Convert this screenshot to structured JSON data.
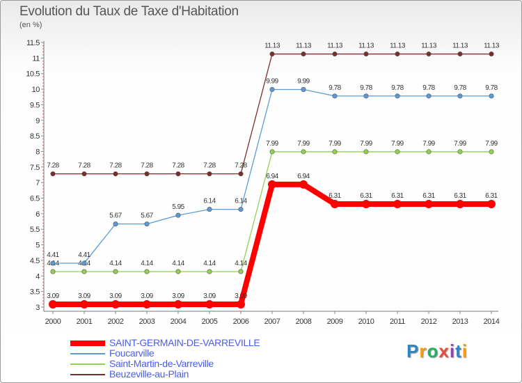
{
  "chart_data": {
    "type": "line",
    "title": "Evolution du Taux de Taxe d'Habitation",
    "ylabel": "(en %)",
    "xlabel": "",
    "x": [
      "2000",
      "2001",
      "2002",
      "2003",
      "2004",
      "2005",
      "2006",
      "2007",
      "2008",
      "2009",
      "2010",
      "2011",
      "2012",
      "2013",
      "2014"
    ],
    "ylim": [
      3,
      11.5
    ],
    "yticks": [
      "3",
      "3.5",
      "4",
      "4.5",
      "5",
      "5.5",
      "6",
      "6.5",
      "7",
      "7.5",
      "8",
      "8.5",
      "9",
      "9.5",
      "10",
      "10.5",
      "11",
      "11.5"
    ],
    "grid": false,
    "legend_position": "bottom-left",
    "series": [
      {
        "name": "SAINT-GERMAIN-DE-VARREVILLE",
        "color": "#ff0000",
        "values": [
          3.09,
          3.09,
          3.09,
          3.09,
          3.09,
          3.09,
          3.09,
          6.94,
          6.94,
          6.31,
          6.31,
          6.31,
          6.31,
          6.31,
          6.31
        ],
        "labels": [
          "3.09",
          "3.09",
          "3.09",
          "3.09",
          "3.09",
          "3.09",
          "3.09",
          "6.94",
          "6.94",
          "6.31",
          "6.31",
          "6.31",
          "6.31",
          "6.31",
          "6.31"
        ]
      },
      {
        "name": "Foucarville",
        "color": "#5b9bd5",
        "values": [
          4.41,
          4.41,
          5.67,
          5.67,
          5.95,
          6.14,
          6.14,
          9.99,
          9.99,
          9.78,
          9.78,
          9.78,
          9.78,
          9.78,
          9.78
        ],
        "labels": [
          "4.41",
          "4.41",
          "5.67",
          "5.67",
          "5.95",
          "6.14",
          "6.14",
          "9.99",
          "9.99",
          "9.78",
          "9.78",
          "9.78",
          "9.78",
          "9.78",
          "9.78"
        ]
      },
      {
        "name": "Saint-Martin-de-Varreville",
        "color": "#92d050",
        "values": [
          4.14,
          4.14,
          4.14,
          4.14,
          4.14,
          4.14,
          4.14,
          7.99,
          7.99,
          7.99,
          7.99,
          7.99,
          7.99,
          7.99,
          7.99
        ],
        "labels": [
          "4.14",
          "4.14",
          "4.14",
          "4.14",
          "4.14",
          "4.14",
          "4.14",
          "7.99",
          "7.99",
          "7.99",
          "7.99",
          "7.99",
          "7.99",
          "7.99",
          "7.99"
        ]
      },
      {
        "name": "Beuzeville-au-Plain",
        "color": "#7b2c2c",
        "values": [
          7.28,
          7.28,
          7.28,
          7.28,
          7.28,
          7.28,
          7.28,
          11.13,
          11.13,
          11.13,
          11.13,
          11.13,
          11.13,
          11.13,
          11.13
        ],
        "labels": [
          "7.28",
          "7.28",
          "7.28",
          "7.28",
          "7.28",
          "7.28",
          "7.28",
          "11.13",
          "11.13",
          "11.13",
          "11.13",
          "11.13",
          "11.13",
          "11.13",
          "11.13"
        ]
      }
    ]
  },
  "legend": {
    "items": [
      {
        "label": "SAINT-GERMAIN-DE-VARREVILLE",
        "color": "#ff0000"
      },
      {
        "label": "Foucarville",
        "color": "#5b9bd5"
      },
      {
        "label": "Saint-Martin-de-Varreville",
        "color": "#92d050"
      },
      {
        "label": "Beuzeville-au-Plain",
        "color": "#7b2c2c"
      }
    ]
  },
  "brand": {
    "letters": [
      "P",
      "r",
      "o",
      "x",
      "i",
      "t",
      "i"
    ],
    "colors": [
      "#2e86c1",
      "#f39c12",
      "#27ae60",
      "#e74c3c",
      "#8e44ad",
      "#2e86c1",
      "#f39c12"
    ]
  }
}
